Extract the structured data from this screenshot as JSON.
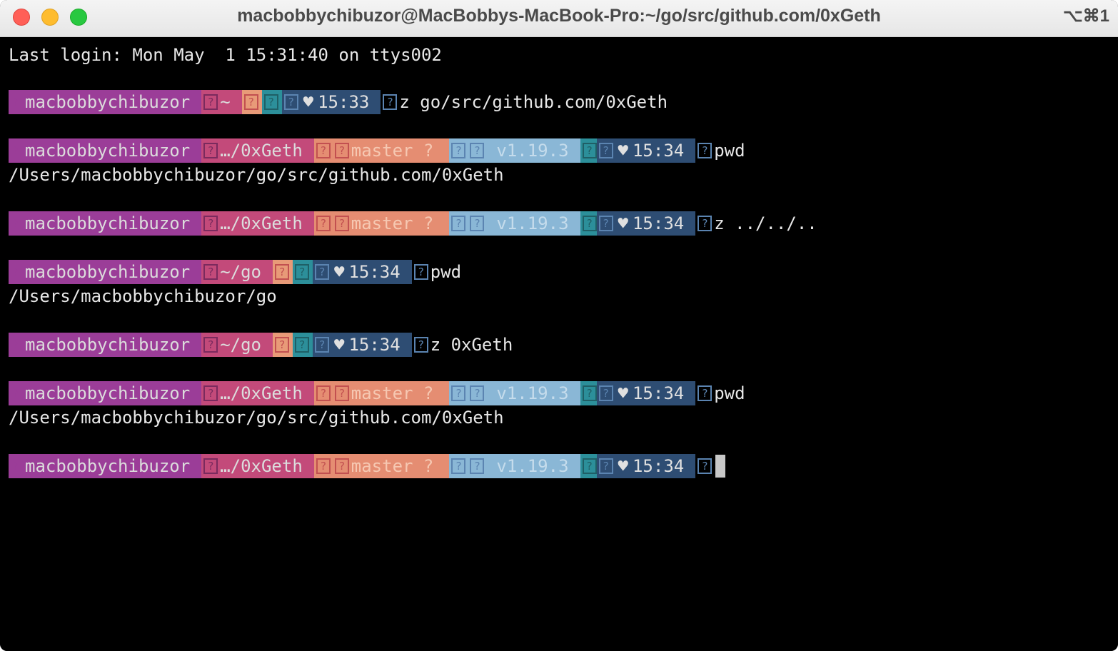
{
  "window": {
    "title": "macbobbychibuzor@MacBobbys-MacBook-Pro:~/go/src/github.com/0xGeth",
    "shortcut": "⌥⌘1"
  },
  "terminal": {
    "login": "Last login: Mon May  1 15:31:40 on ttys002",
    "user": "macbobbychibuzor",
    "glyph": "?",
    "heart": "♥",
    "git_branch": "master ?",
    "go_version": "v1.19.3",
    "prompts": [
      {
        "dir": "~",
        "time": "15:33",
        "command": "z go/src/github.com/0xGeth"
      },
      {
        "dir": "…/0xGeth",
        "time": "15:34",
        "command": "pwd"
      },
      {
        "dir": "…/0xGeth",
        "time": "15:34",
        "command": "z ../../.."
      },
      {
        "dir": "~/go",
        "time": "15:34",
        "command": "pwd"
      },
      {
        "dir": "~/go",
        "time": "15:34",
        "command": "z 0xGeth"
      },
      {
        "dir": "…/0xGeth",
        "time": "15:34",
        "command": "pwd"
      },
      {
        "dir": "…/0xGeth",
        "time": "15:34",
        "command": ""
      }
    ],
    "outputs": [
      "/Users/macbobbychibuzor/go/src/github.com/0xGeth",
      "/Users/macbobbychibuzor/go",
      "/Users/macbobbychibuzor/go/src/github.com/0xGeth"
    ]
  }
}
